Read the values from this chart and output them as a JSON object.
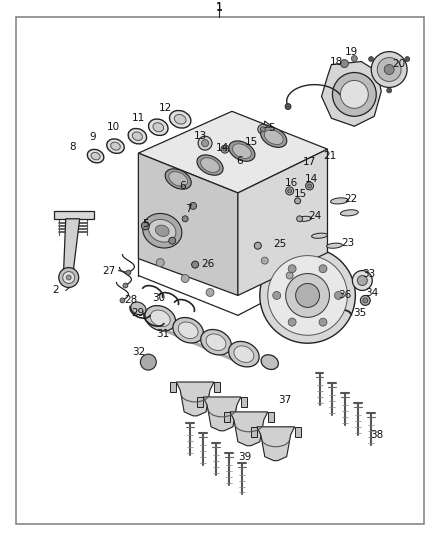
{
  "bg_color": "#ffffff",
  "border_color": "#888888",
  "text_color": "#111111",
  "figsize": [
    4.38,
    5.33
  ],
  "dpi": 100,
  "line_color": "#222222",
  "part_color": "#333333"
}
